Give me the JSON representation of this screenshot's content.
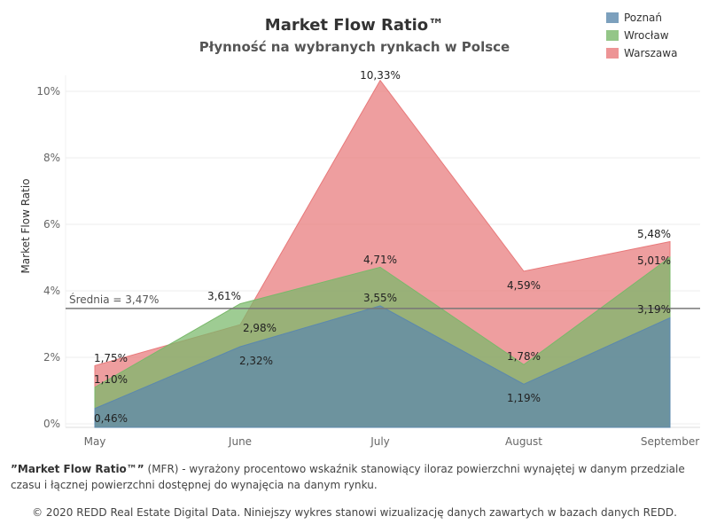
{
  "header": {
    "title": "Market Flow Ratio™",
    "subtitle": "Płynność na wybranych rynkach w Polsce"
  },
  "footnote": {
    "term": "”Market Flow Ratio™”",
    "text": " (MFR) - wyrażony procentowo wskaźnik stanowiący iloraz powierzchni wynajętej w danym przedziale czasu i łącznej powierzchni dostępnej do wynajęcia na danym rynku."
  },
  "copyright": "© 2020 REDD Real Estate Digital Data. Niniejszy wykres stanowi wizualizację danych zawartych w bazach danych REDD.",
  "chart_data": {
    "type": "area",
    "categories": [
      "May",
      "June",
      "July",
      "August",
      "September"
    ],
    "ylabel": "Market Flow Ratio",
    "ylim": [
      0,
      10.3
    ],
    "yticks": [
      0,
      2,
      4,
      6,
      8,
      10
    ],
    "ytick_labels": [
      "0%",
      "2%",
      "4%",
      "6%",
      "8%",
      "10%"
    ],
    "grid": true,
    "legend_position": "top-right",
    "series": [
      {
        "name": "Warszawa",
        "color": "#e8797a",
        "values": [
          1.75,
          2.98,
          10.33,
          4.59,
          5.48
        ],
        "labels": [
          "1,75%",
          "2,98%",
          "10,33%",
          "4,59%",
          "5,48%"
        ]
      },
      {
        "name": "Wrocław",
        "color": "#79b86a",
        "values": [
          1.1,
          3.61,
          4.71,
          1.78,
          5.01
        ],
        "labels": [
          "1,10%",
          "3,61%",
          "4,71%",
          "1,78%",
          "5,01%"
        ]
      },
      {
        "name": "Poznań",
        "color": "#5b88ad",
        "values": [
          0.46,
          2.32,
          3.55,
          1.19,
          3.19
        ],
        "labels": [
          "0,46%",
          "2,32%",
          "3,55%",
          "1,19%",
          "3,19%"
        ]
      }
    ],
    "reference_line": {
      "value": 3.47,
      "label": "Średnia = 3,47%"
    }
  }
}
